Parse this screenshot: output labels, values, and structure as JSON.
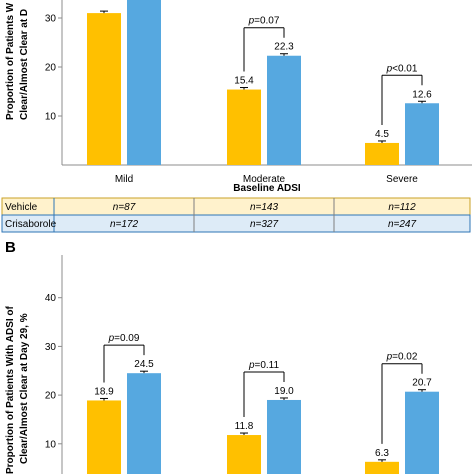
{
  "colors": {
    "vehicle": "#FFC000",
    "crisaborole": "#56A8E0",
    "vehicle_row": "#FFF2CC",
    "crisaborole_row": "#DDEBF7"
  },
  "chart_data": [
    {
      "type": "bar",
      "panel": "",
      "ylabel_line1": "Proportion of Patients W",
      "ylabel_line2": "Clear/Almost Clear at D",
      "xlabel": "Baseline ADSI",
      "categories": [
        "Mild",
        "Moderate",
        "Severe"
      ],
      "yticks": [
        "10",
        "20",
        "30"
      ],
      "ylim": [
        0,
        36
      ],
      "series": [
        {
          "name": "Vehicle",
          "values": [
            31.0,
            15.4,
            4.5
          ],
          "labels": [
            "",
            "15.4",
            "4.5"
          ]
        },
        {
          "name": "Crisaborole",
          "values": [
            36.0,
            22.3,
            12.6
          ],
          "labels": [
            "",
            "22.3",
            "12.6"
          ]
        }
      ],
      "pvalues": [
        "",
        "p=0.07",
        "p<0.01"
      ]
    },
    {
      "type": "bar",
      "panel": "B",
      "ylabel_line1": "Proportion of Patients With ADSI of",
      "ylabel_line2": "Clear/Almost Clear at Day 29, %",
      "categories": [
        "",
        "",
        ""
      ],
      "yticks": [
        "10",
        "20",
        "30",
        "40"
      ],
      "ylim": [
        0,
        49
      ],
      "series": [
        {
          "name": "Vehicle",
          "values": [
            18.9,
            11.8,
            6.3
          ],
          "labels": [
            "18.9",
            "11.8",
            "6.3"
          ]
        },
        {
          "name": "Crisaborole",
          "values": [
            24.5,
            19.0,
            20.7
          ],
          "labels": [
            "24.5",
            "19.0",
            "20.7"
          ]
        }
      ],
      "pvalues": [
        "p=0.09",
        "p=0.11",
        "p=0.02"
      ]
    }
  ],
  "table": {
    "rows": [
      {
        "label": "Vehicle",
        "values": [
          "n=87",
          "n=143",
          "n=112"
        ]
      },
      {
        "label": "Crisaborole",
        "values": [
          "n=172",
          "n=327",
          "n=247"
        ]
      }
    ]
  }
}
